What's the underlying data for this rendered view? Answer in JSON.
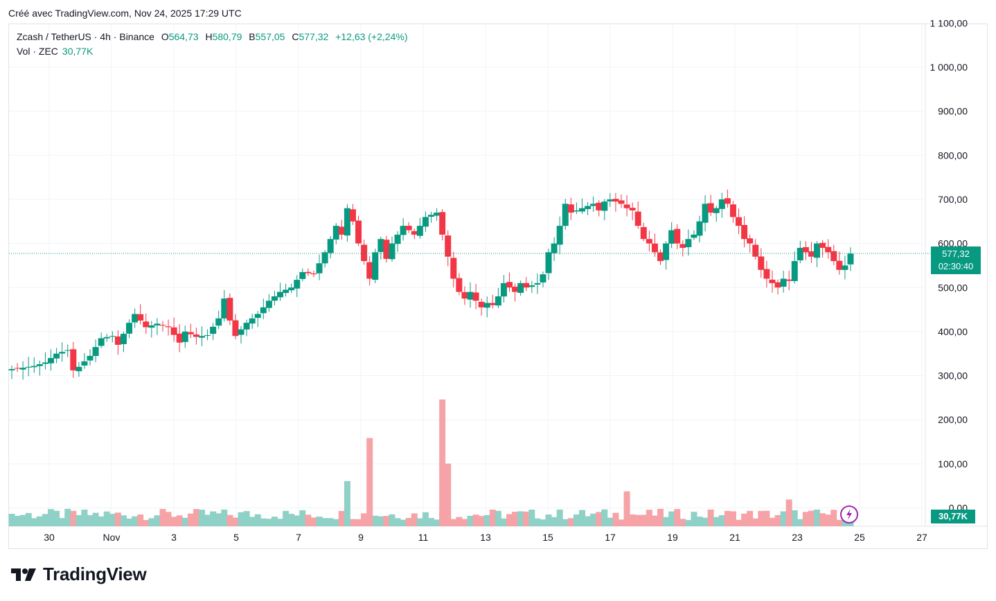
{
  "header": {
    "created": "Créé avec TradingView.com, Nov 24, 2025 17:29 UTC"
  },
  "legend": {
    "symbol": "Zcash / TetherUS · 4h · Binance",
    "open_label": "O",
    "open": "564,73",
    "high_label": "H",
    "high": "580,79",
    "low_label": "B",
    "low": "557,05",
    "close_label": "C",
    "close": "577,32",
    "change": "+12,63 (+2,24%)"
  },
  "volume_legend": {
    "label": "Vol · ZEC",
    "value": "30,77K"
  },
  "price_tag": {
    "price": "577,32",
    "countdown": "02:30:40"
  },
  "volume_tag": "30,77K",
  "brand": {
    "name": "TradingView"
  },
  "colors": {
    "up": "#089981",
    "down": "#f23645",
    "up_vol": "#8fd1c6",
    "down_vol": "#f5a3a7",
    "grid": "#f0f3fa",
    "accent": "#9c27b0"
  },
  "icons": {
    "logo": "tradingview-logo-icon",
    "bolt": "lightning-icon"
  },
  "chart_data": {
    "type": "candlestick",
    "price_axis": {
      "ticks": [
        "1 100,00",
        "1 000,00",
        "900,00",
        "800,00",
        "700,00",
        "600,00",
        "500,00",
        "400,00",
        "300,00",
        "200,00",
        "100,00",
        "0,00"
      ],
      "ylim": [
        0,
        1100
      ]
    },
    "time_axis": {
      "ticks": [
        "30",
        "Nov",
        "3",
        "5",
        "7",
        "9",
        "11",
        "13",
        "15",
        "17",
        "19",
        "21",
        "23",
        "25",
        "27"
      ]
    },
    "last_price": 577.32,
    "close_path": [
      [
        0,
        315
      ],
      [
        2,
        318
      ],
      [
        4,
        322
      ],
      [
        6,
        330
      ],
      [
        8,
        350
      ],
      [
        10,
        358
      ],
      [
        11,
        312
      ],
      [
        12,
        320
      ],
      [
        14,
        345
      ],
      [
        16,
        385
      ],
      [
        18,
        390
      ],
      [
        19,
        370
      ],
      [
        21,
        420
      ],
      [
        22,
        440
      ],
      [
        24,
        410
      ],
      [
        26,
        418
      ],
      [
        28,
        410
      ],
      [
        30,
        375
      ],
      [
        31,
        400
      ],
      [
        33,
        388
      ],
      [
        35,
        392
      ],
      [
        37,
        430
      ],
      [
        38,
        475
      ],
      [
        39,
        425
      ],
      [
        40,
        390
      ],
      [
        42,
        420
      ],
      [
        44,
        440
      ],
      [
        46,
        470
      ],
      [
        48,
        490
      ],
      [
        50,
        500
      ],
      [
        52,
        535
      ],
      [
        54,
        530
      ],
      [
        56,
        580
      ],
      [
        58,
        640
      ],
      [
        59,
        620
      ],
      [
        60,
        680
      ],
      [
        61,
        650
      ],
      [
        62,
        600
      ],
      [
        63,
        560
      ],
      [
        64,
        520
      ],
      [
        65,
        580
      ],
      [
        66,
        610
      ],
      [
        67,
        565
      ],
      [
        68,
        600
      ],
      [
        70,
        640
      ],
      [
        72,
        620
      ],
      [
        74,
        660
      ],
      [
        76,
        670
      ],
      [
        77,
        620
      ],
      [
        78,
        570
      ],
      [
        79,
        520
      ],
      [
        80,
        490
      ],
      [
        81,
        475
      ],
      [
        82,
        490
      ],
      [
        83,
        470
      ],
      [
        84,
        455
      ],
      [
        85,
        465
      ],
      [
        86,
        460
      ],
      [
        87,
        480
      ],
      [
        88,
        510
      ],
      [
        89,
        500
      ],
      [
        90,
        490
      ],
      [
        91,
        510
      ],
      [
        92,
        500
      ],
      [
        94,
        510
      ],
      [
        95,
        530
      ],
      [
        96,
        580
      ],
      [
        97,
        600
      ],
      [
        98,
        640
      ],
      [
        99,
        690
      ],
      [
        100,
        670
      ],
      [
        102,
        680
      ],
      [
        104,
        690
      ],
      [
        105,
        675
      ],
      [
        106,
        695
      ],
      [
        107,
        700
      ],
      [
        109,
        690
      ],
      [
        110,
        680
      ],
      [
        111,
        675
      ],
      [
        112,
        640
      ],
      [
        113,
        610
      ],
      [
        114,
        600
      ],
      [
        115,
        580
      ],
      [
        116,
        560
      ],
      [
        117,
        600
      ],
      [
        118,
        630
      ],
      [
        119,
        600
      ],
      [
        120,
        590
      ],
      [
        121,
        610
      ],
      [
        122,
        620
      ],
      [
        123,
        650
      ],
      [
        124,
        690
      ],
      [
        125,
        670
      ],
      [
        126,
        680
      ],
      [
        127,
        700
      ],
      [
        128,
        690
      ],
      [
        129,
        660
      ],
      [
        130,
        640
      ],
      [
        131,
        610
      ],
      [
        132,
        600
      ],
      [
        133,
        570
      ],
      [
        134,
        540
      ],
      [
        135,
        520
      ],
      [
        136,
        510
      ],
      [
        137,
        500
      ],
      [
        138,
        520
      ],
      [
        139,
        515
      ],
      [
        140,
        560
      ],
      [
        141,
        590
      ],
      [
        142,
        580
      ],
      [
        143,
        570
      ],
      [
        144,
        600
      ],
      [
        145,
        590
      ],
      [
        146,
        580
      ],
      [
        147,
        560
      ],
      [
        148,
        540
      ],
      [
        149,
        550
      ],
      [
        150,
        577
      ]
    ],
    "volume_peaks": [
      {
        "date": "7",
        "value": 88
      },
      {
        "date": "8",
        "value": 172
      },
      {
        "date": "10",
        "value": 247
      },
      {
        "date": "11",
        "value": 122
      },
      {
        "date": "16",
        "value": 68
      },
      {
        "date": "22",
        "value": 52
      }
    ]
  }
}
